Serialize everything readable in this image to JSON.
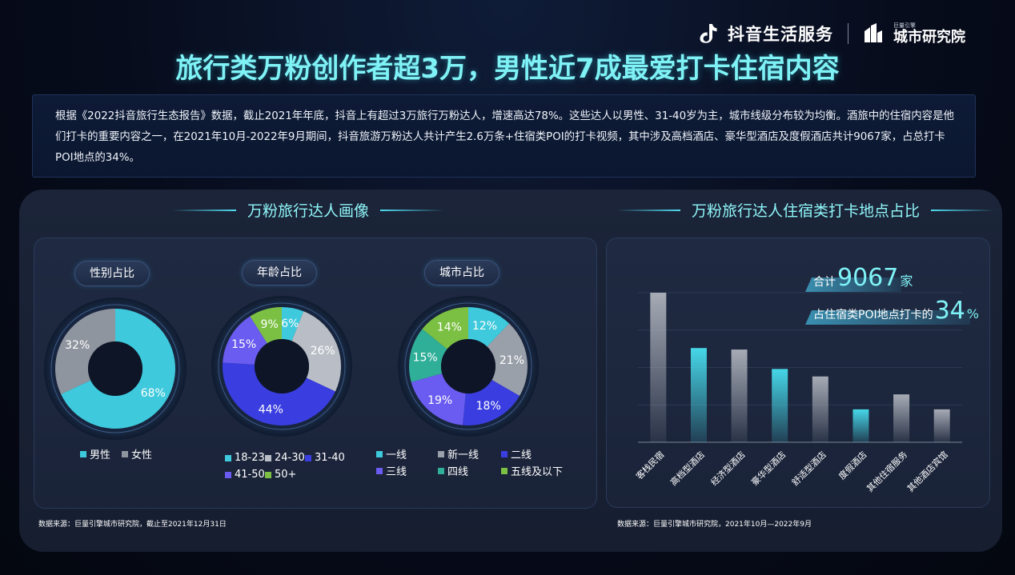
{
  "brand": {
    "douyin": "抖音生活服务",
    "institute_small": "巨量引擎",
    "institute": "城市研究院"
  },
  "title": "旅行类万粉创作者超3万，男性近7成最爱打卡住宿内容",
  "summary": "根据《2022抖音旅行生态报告》数据，截止2021年年底，抖音上有超过3万旅行万粉达人，增速高达78%。这些达人以男性、31-40岁为主，城市线级分布较为均衡。酒旅中的住宿内容是他们打卡的重要内容之一，在2021年10月-2022年9月期间，抖音旅游万粉达人共计产生2.6万条+住宿类POI的打卡视频，其中涉及高档酒店、豪华型酒店及度假酒店共计9067家，占总打卡POI地点的34%。",
  "left_section_title": "万粉旅行达人画像",
  "right_section_title": "万粉旅行达人住宿类打卡地点占比",
  "left_source": "数据来源：巨量引擎城市研究院，截止至2021年12月31日",
  "right_source": "数据来源：巨量引擎城市研究院，2021年10月—2022年9月",
  "callout": {
    "total_prefix": "合计",
    "total_value": "9067",
    "total_unit": "家",
    "share_prefix": "占住宿类POI地点打卡的",
    "share_value": "34",
    "share_unit": "%"
  },
  "chart_data": [
    {
      "type": "pie",
      "title": "性别占比",
      "categories": [
        "男性",
        "女性"
      ],
      "values": [
        68,
        32
      ],
      "colors": [
        "#3ec9dc",
        "#8f959e"
      ],
      "labels": [
        "68%",
        "32%"
      ]
    },
    {
      "type": "pie",
      "title": "年龄占比",
      "categories": [
        "18-23",
        "24-30",
        "31-40",
        "41-50",
        "50+"
      ],
      "values": [
        6,
        26,
        44,
        15,
        9
      ],
      "colors": [
        "#3ec9dc",
        "#b9bec6",
        "#3a3ee0",
        "#6a5cf0",
        "#7bc043"
      ],
      "labels": [
        "6%",
        "26%",
        "44%",
        "15%",
        "9%"
      ]
    },
    {
      "type": "pie",
      "title": "城市占比",
      "categories": [
        "一线",
        "新一线",
        "二线",
        "三线",
        "四线",
        "五线及以下"
      ],
      "values": [
        12,
        21,
        18,
        19,
        15,
        14
      ],
      "colors": [
        "#3ec9dc",
        "#9aa0aa",
        "#3a3ee0",
        "#6a5cf0",
        "#2fae98",
        "#7bc043"
      ],
      "labels": [
        "12%",
        "21%",
        "18%",
        "19%",
        "15%",
        "14%"
      ]
    },
    {
      "type": "bar",
      "categories": [
        "客栈民宿",
        "高档型酒店",
        "经济型酒店",
        "豪华型酒店",
        "舒适型酒店",
        "度假酒店",
        "其他住宿服务",
        "其他酒店宾馆"
      ],
      "values": [
        100,
        63,
        62,
        49,
        44,
        22,
        32,
        22
      ],
      "highlight": [
        false,
        true,
        false,
        true,
        false,
        true,
        false,
        false
      ],
      "highlight_color": "#46d7e8",
      "base_color": "#a6abb5",
      "ylim": [
        0,
        100
      ]
    }
  ]
}
